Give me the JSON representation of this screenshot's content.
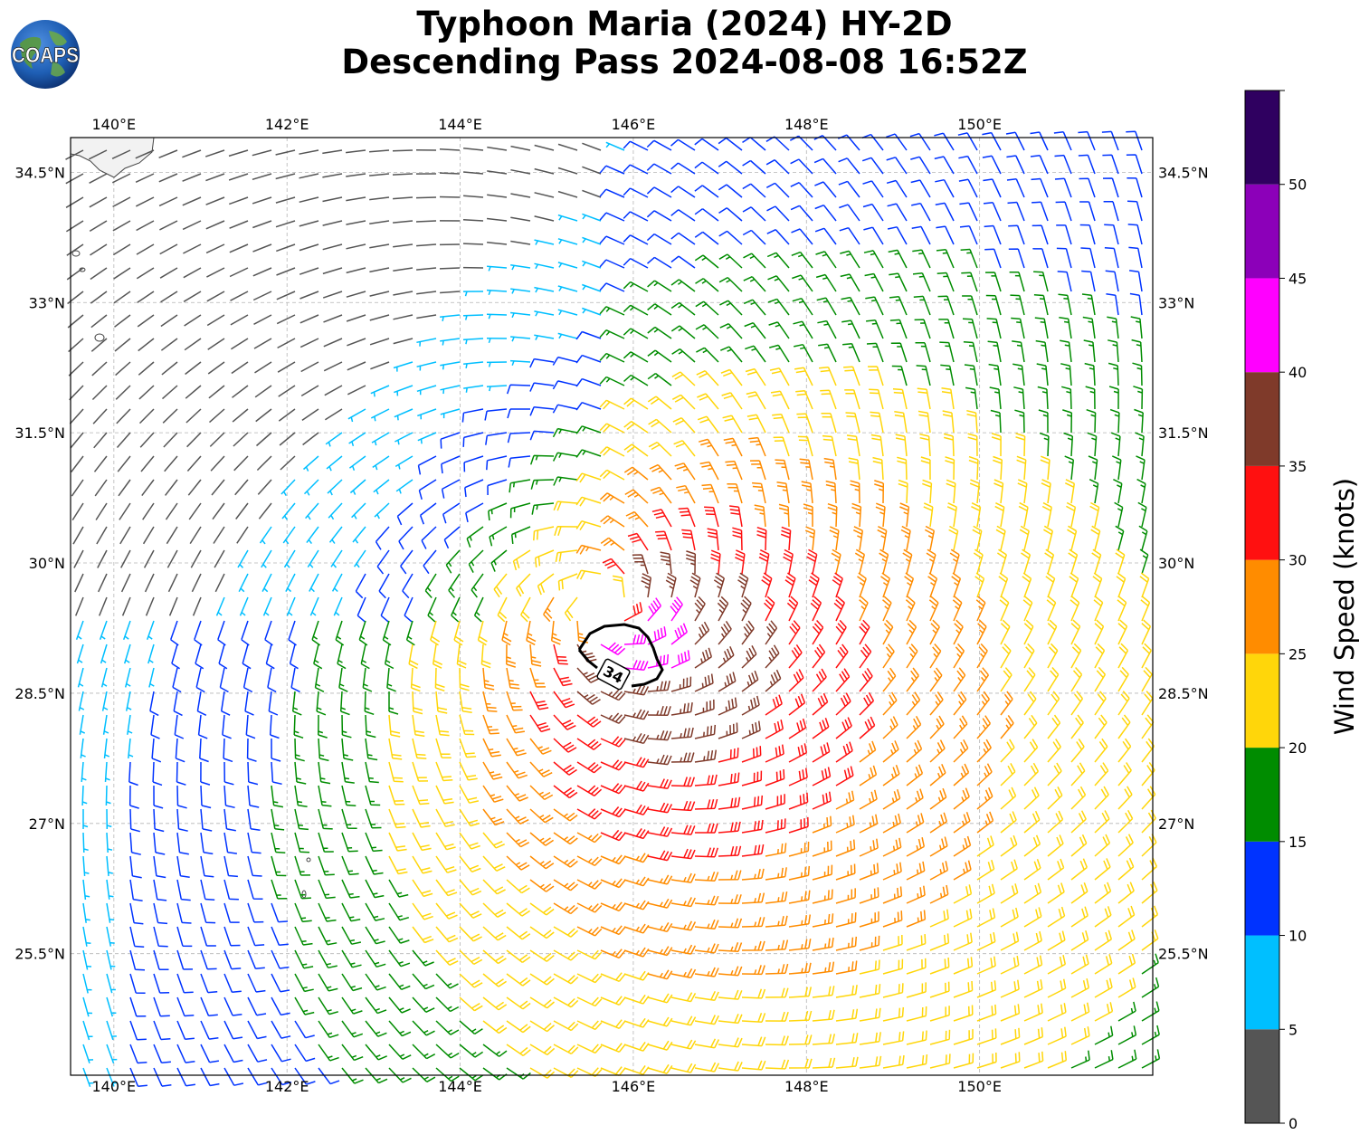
{
  "header": {
    "title_line1": "Typhoon Maria (2024) HY-2D",
    "title_line2": "Descending Pass 2024-08-08 16:52Z"
  },
  "logo": {
    "text": "COAPS",
    "icon": "globe-icon"
  },
  "map": {
    "lon_range": [
      139.5,
      152.0
    ],
    "lat_range": [
      24.1,
      34.9
    ],
    "lon_ticks": [
      140,
      142,
      144,
      146,
      148,
      150
    ],
    "lat_ticks": [
      25.5,
      27,
      28.5,
      30,
      31.5,
      33,
      34.5
    ],
    "lon_labels": [
      "140°E",
      "142°E",
      "144°E",
      "146°E",
      "148°E",
      "150°E"
    ],
    "lat_labels": [
      "25.5°N",
      "27°N",
      "28.5°N",
      "30°N",
      "31.5°N",
      "33°N",
      "34.5°N"
    ],
    "grid": "dashed",
    "storm_center": {
      "lon": 145.7,
      "lat": 29.5
    },
    "contour_label": "34",
    "contour_color": "#000000"
  },
  "colorbar": {
    "label": "Wind Speed (knots)",
    "bounds": [
      0,
      5,
      10,
      15,
      20,
      25,
      30,
      35,
      40,
      45,
      50,
      55
    ],
    "tick_labels": [
      "0",
      "5",
      "10",
      "15",
      "20",
      "25",
      "30",
      "35",
      "40",
      "45",
      "50"
    ],
    "colors": [
      "#555555",
      "#00bfff",
      "#0033ff",
      "#008c00",
      "#ffd60a",
      "#ff8c00",
      "#ff1010",
      "#7f3a2a",
      "#ff00ff",
      "#8c00b9",
      "#2f0060"
    ]
  }
}
